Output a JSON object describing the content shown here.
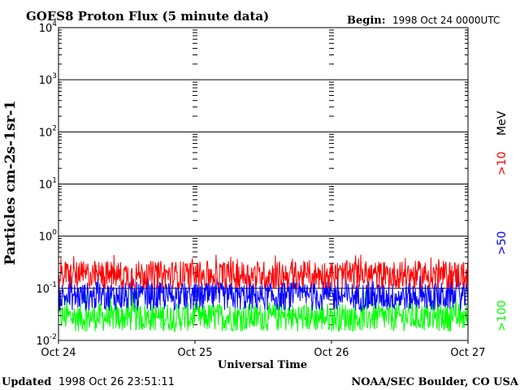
{
  "chart_data": {
    "type": "line",
    "title": "GOES8 Proton Flux (5 minute data)",
    "begin_label": "Begin:",
    "begin_value": "1998 Oct 24 0000UTC",
    "xlabel": "Universal Time",
    "ylabel": "Particles cm-2s-1sr-1",
    "y_scale": "log",
    "ylim": [
      0.01,
      10000
    ],
    "y_ticks": [
      {
        "base": "10",
        "exp": "-2"
      },
      {
        "base": "10",
        "exp": "-1"
      },
      {
        "base": "10",
        "exp": "0"
      },
      {
        "base": "10",
        "exp": "1"
      },
      {
        "base": "10",
        "exp": "2"
      },
      {
        "base": "10",
        "exp": "3"
      },
      {
        "base": "10",
        "exp": "4"
      }
    ],
    "x_ticks": [
      "Oct 24",
      "Oct 25",
      "Oct 26",
      "Oct 27"
    ],
    "xlim": [
      "1998-10-24 00:00",
      "1998-10-27 00:00"
    ],
    "grid": true,
    "legend_placement": "right-vertical",
    "legend_unit": "MeV",
    "series": [
      {
        "name": ">10",
        "color": "#ff0000",
        "typical_value": 0.18,
        "peak_value": 0.45,
        "min_value": 0.1
      },
      {
        "name": ">50",
        "color": "#0000ff",
        "typical_value": 0.07,
        "peak_value": 0.2,
        "min_value": 0.03
      },
      {
        "name": ">100",
        "color": "#00ff00",
        "typical_value": 0.028,
        "peak_value": 0.09,
        "min_value": 0.015
      }
    ]
  },
  "footer": {
    "updated_label": "Updated",
    "updated_value": "1998 Oct 26 23:51:11",
    "source": "NOAA/SEC Boulder, CO USA"
  }
}
